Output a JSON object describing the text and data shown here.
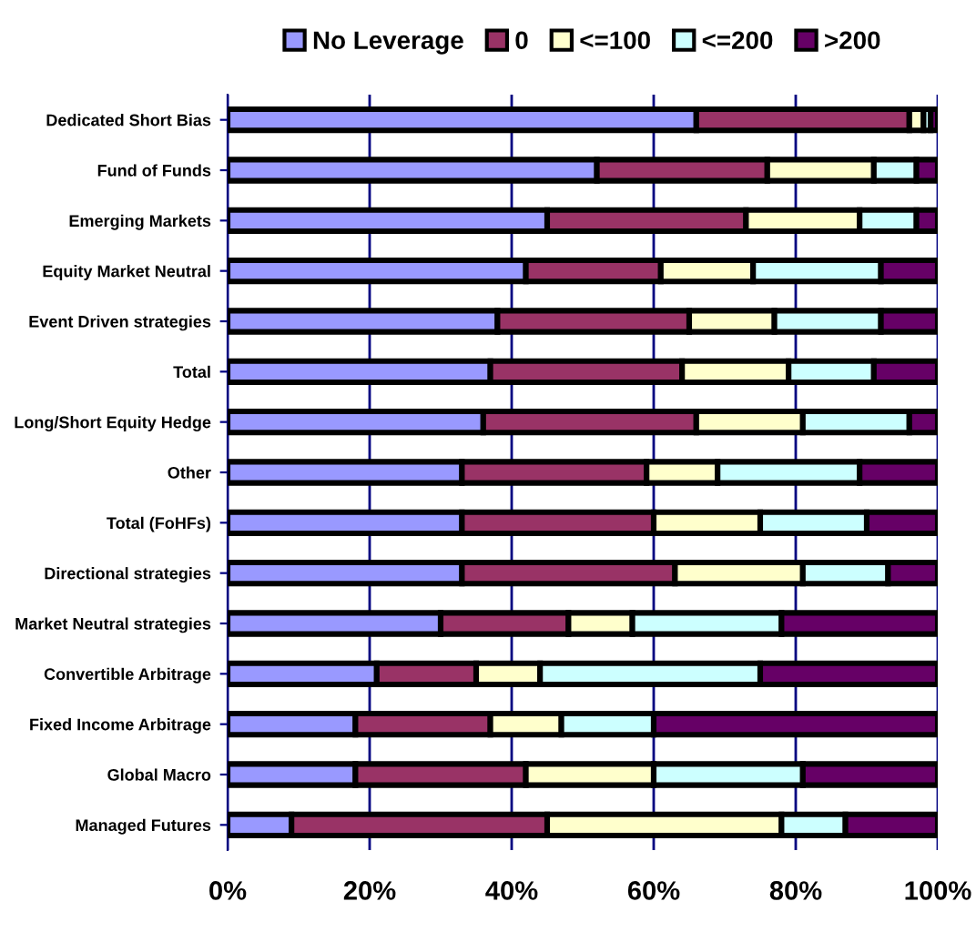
{
  "chart_data": {
    "type": "bar",
    "orientation": "horizontal",
    "stacked": true,
    "categories": [
      "Dedicated Short Bias",
      "Fund of Funds",
      "Emerging Markets",
      "Equity Market Neutral",
      "Event Driven strategies",
      "Total",
      "Long/Short Equity Hedge",
      "Other",
      "Total (FoHFs)",
      "Directional strategies",
      "Market Neutral strategies",
      "Convertible Arbitrage",
      "Fixed Income Arbitrage",
      "Global Macro",
      "Managed Futures"
    ],
    "series": [
      {
        "name": "No Leverage",
        "color": "#9999ff",
        "values": [
          66,
          52,
          45,
          42,
          38,
          37,
          36,
          33,
          33,
          33,
          30,
          21,
          18,
          18,
          9
        ]
      },
      {
        "name": "0",
        "color": "#993366",
        "values": [
          30,
          24,
          28,
          19,
          27,
          27,
          30,
          26,
          27,
          30,
          18,
          14,
          19,
          24,
          36
        ]
      },
      {
        "name": "<=100",
        "color": "#ffffcc",
        "values": [
          2,
          15,
          16,
          13,
          12,
          15,
          15,
          10,
          15,
          18,
          9,
          9,
          10,
          18,
          33
        ]
      },
      {
        "name": "<=200",
        "color": "#ccffff",
        "values": [
          1,
          6,
          8,
          18,
          15,
          12,
          15,
          20,
          15,
          12,
          21,
          31,
          13,
          21,
          9
        ]
      },
      {
        "name": ">200",
        "color": "#660066",
        "values": [
          1,
          3,
          3,
          8,
          8,
          9,
          4,
          11,
          10,
          7,
          22,
          25,
          40,
          19,
          13
        ]
      }
    ],
    "xlim": [
      0,
      100
    ],
    "xticks": [
      {
        "value": 0,
        "label": "0%"
      },
      {
        "value": 20,
        "label": "20%"
      },
      {
        "value": 40,
        "label": "40%"
      },
      {
        "value": 60,
        "label": "60%"
      },
      {
        "value": 80,
        "label": "80%"
      },
      {
        "value": 100,
        "label": "100%"
      }
    ],
    "grid": "x",
    "legend": "top"
  }
}
